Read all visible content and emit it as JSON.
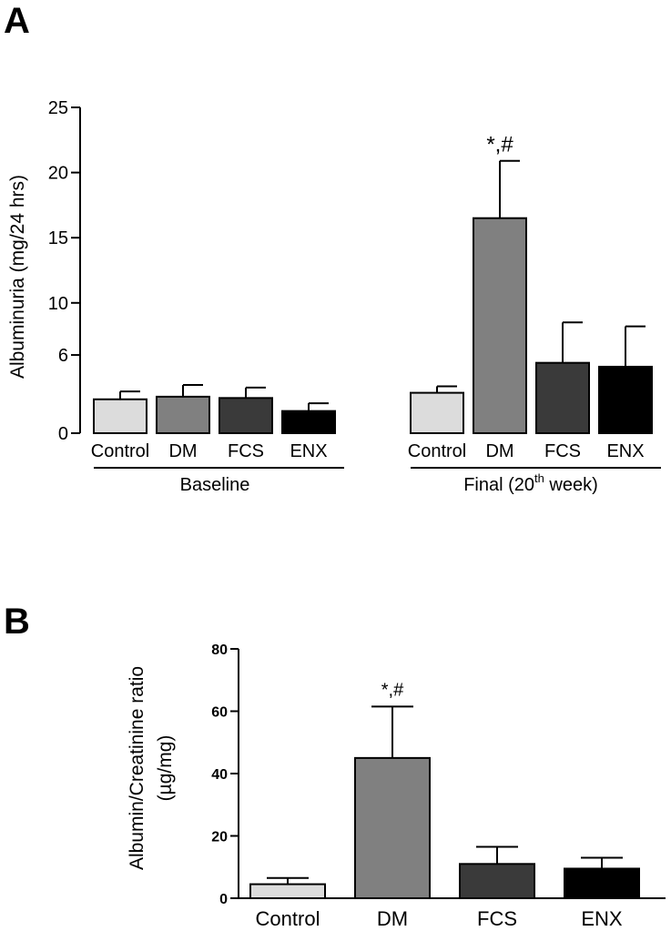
{
  "chart_data": [
    {
      "panel_label": "A",
      "type": "bar",
      "ylabel": "Albuminuria (mg/24 hrs)",
      "ylim": [
        0,
        25
      ],
      "yticks": [
        0,
        6,
        10,
        15,
        20,
        25
      ],
      "groups": [
        {
          "name": "Baseline",
          "categories": [
            "Control",
            "DM",
            "FCS",
            "ENX"
          ],
          "values": [
            2.6,
            2.8,
            2.7,
            1.7
          ],
          "errors": [
            0.6,
            0.9,
            0.8,
            0.6
          ],
          "annotations": [
            "",
            "",
            "",
            ""
          ]
        },
        {
          "name_main": "Final (20",
          "name_sup": "th",
          "name_tail": " week)",
          "categories": [
            "Control",
            "DM",
            "FCS",
            "ENX"
          ],
          "values": [
            3.1,
            16.5,
            5.4,
            5.1
          ],
          "errors": [
            0.5,
            4.4,
            3.1,
            3.1
          ],
          "annotations": [
            "",
            "*,#",
            "",
            ""
          ]
        }
      ],
      "colors": [
        "#dcdcdc",
        "#808080",
        "#3a3a3a",
        "#000000"
      ]
    },
    {
      "panel_label": "B",
      "type": "bar",
      "ylabel_line1": "Albumin/Creatinine ratio",
      "ylabel_line2": "(µg/mg)",
      "ylim": [
        0,
        80
      ],
      "yticks": [
        0,
        20,
        40,
        60,
        80
      ],
      "categories": [
        "Control",
        "DM",
        "FCS",
        "ENX"
      ],
      "values": [
        4.5,
        45,
        11,
        9.5
      ],
      "errors": [
        2,
        16.5,
        5.5,
        3.5
      ],
      "annotations": [
        "",
        "*,#",
        "",
        ""
      ],
      "colors": [
        "#dcdcdc",
        "#808080",
        "#3a3a3a",
        "#000000"
      ]
    }
  ]
}
